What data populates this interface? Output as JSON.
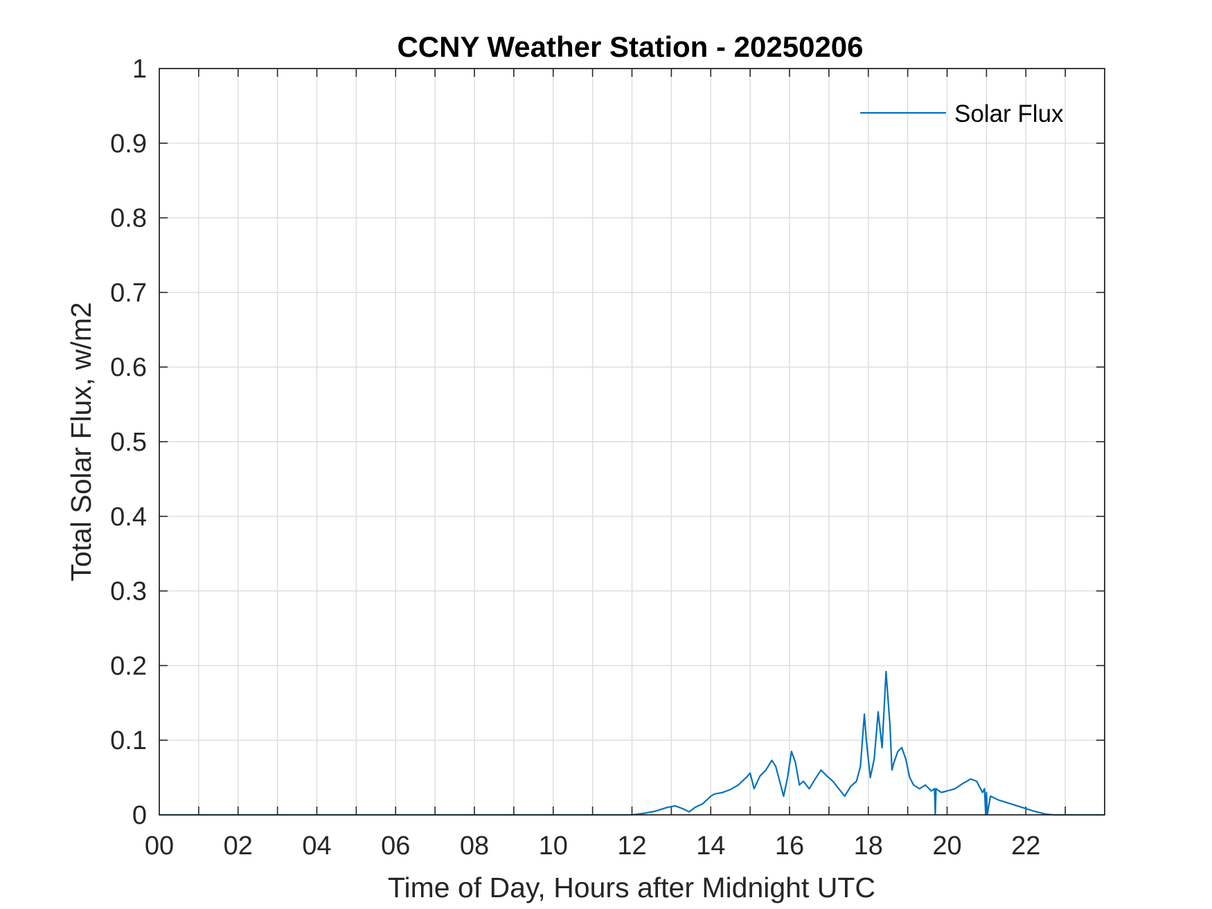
{
  "chart_data": {
    "type": "line",
    "title": "CCNY Weather Station - 20250206",
    "xlabel": "Time of Day, Hours after Midnight UTC",
    "ylabel": "Total Solar Flux, w/m2",
    "xlim": [
      0,
      24
    ],
    "ylim": [
      0,
      1
    ],
    "xticks": [
      0,
      2,
      4,
      6,
      8,
      10,
      12,
      14,
      16,
      18,
      20,
      22
    ],
    "xtick_labels": [
      "00",
      "02",
      "04",
      "06",
      "08",
      "10",
      "12",
      "14",
      "16",
      "18",
      "20",
      "22"
    ],
    "yticks": [
      0,
      0.1,
      0.2,
      0.3,
      0.4,
      0.5,
      0.6,
      0.7,
      0.8,
      0.9,
      1
    ],
    "ytick_labels": [
      "0",
      "0.1",
      "0.2",
      "0.3",
      "0.4",
      "0.5",
      "0.6",
      "0.7",
      "0.8",
      "0.9",
      "1"
    ],
    "grid": true,
    "legend": {
      "entries": [
        "Solar Flux"
      ],
      "location": "top-right"
    },
    "series": [
      {
        "name": "Solar Flux",
        "color": "#0072BD",
        "x": [
          0,
          12.0,
          12.3,
          12.6,
          12.9,
          13.1,
          13.3,
          13.45,
          13.6,
          13.8,
          14.0,
          14.1,
          14.3,
          14.5,
          14.7,
          14.9,
          15.0,
          15.1,
          15.25,
          15.4,
          15.55,
          15.65,
          15.75,
          15.85,
          15.95,
          16.05,
          16.15,
          16.25,
          16.35,
          16.5,
          16.65,
          16.8,
          16.95,
          17.1,
          17.25,
          17.4,
          17.55,
          17.7,
          17.8,
          17.9,
          17.95,
          18.05,
          18.15,
          18.25,
          18.35,
          18.45,
          18.55,
          18.6,
          18.65,
          18.75,
          18.85,
          18.95,
          19.05,
          19.15,
          19.3,
          19.45,
          19.6,
          19.68,
          19.7,
          19.72,
          19.85,
          20.0,
          20.2,
          20.4,
          20.6,
          20.75,
          20.9,
          20.95,
          20.98,
          21.0,
          21.02,
          21.1,
          21.3,
          21.6,
          21.9,
          22.2,
          22.5,
          22.7,
          23.0,
          24.0
        ],
        "y": [
          0,
          0,
          0.002,
          0.005,
          0.01,
          0.012,
          0.008,
          0.004,
          0.01,
          0.015,
          0.025,
          0.028,
          0.03,
          0.034,
          0.04,
          0.05,
          0.056,
          0.035,
          0.052,
          0.06,
          0.073,
          0.065,
          0.045,
          0.025,
          0.05,
          0.085,
          0.07,
          0.04,
          0.045,
          0.035,
          0.048,
          0.06,
          0.052,
          0.045,
          0.035,
          0.025,
          0.038,
          0.045,
          0.065,
          0.135,
          0.1,
          0.05,
          0.075,
          0.138,
          0.09,
          0.192,
          0.12,
          0.06,
          0.07,
          0.085,
          0.09,
          0.075,
          0.05,
          0.04,
          0.035,
          0.04,
          0.032,
          0.035,
          0.0,
          0.035,
          0.03,
          0.032,
          0.035,
          0.042,
          0.048,
          0.045,
          0.03,
          0.035,
          0.0,
          0.03,
          0.0,
          0.025,
          0.02,
          0.015,
          0.01,
          0.005,
          0.001,
          0,
          0,
          0
        ]
      }
    ]
  }
}
